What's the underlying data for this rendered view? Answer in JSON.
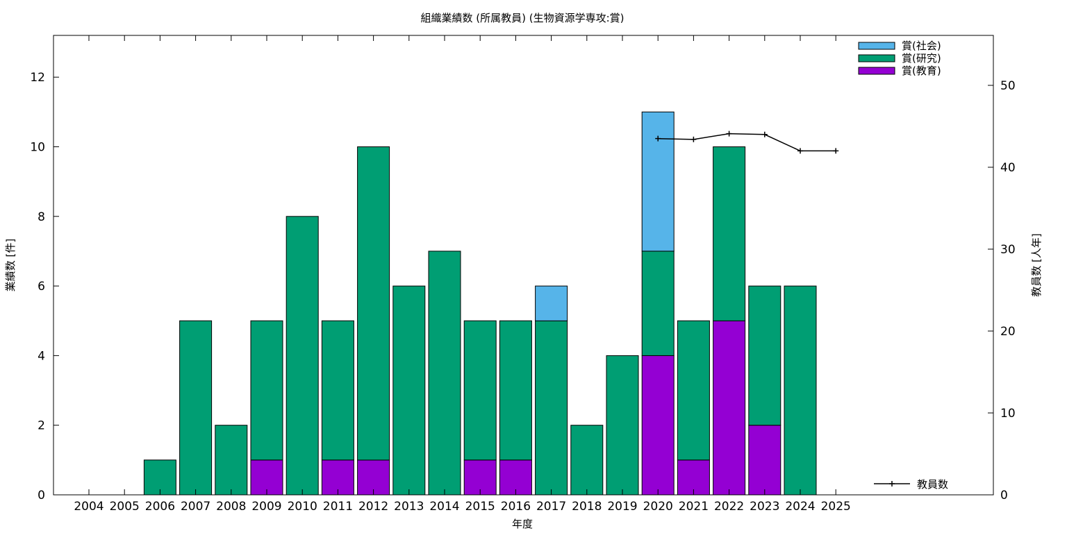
{
  "chart_data": {
    "type": "bar",
    "stacked": true,
    "title": "組織業績数 (所属教員) (生物資源学専攻:賞)",
    "xlabel": "年度",
    "ylabel": "業績数 [件]",
    "y2label": "教員数 [人年]",
    "ylim": [
      0,
      13.2
    ],
    "y2lim": [
      0,
      56.1
    ],
    "yticks": [
      0,
      2,
      4,
      6,
      8,
      10,
      12
    ],
    "y2ticks": [
      0,
      10,
      20,
      30,
      40,
      50
    ],
    "grid": false,
    "legend_position": "top-right",
    "categories": [
      "2004",
      "2005",
      "2006",
      "2007",
      "2008",
      "2009",
      "2010",
      "2011",
      "2012",
      "2013",
      "2014",
      "2015",
      "2016",
      "2017",
      "2018",
      "2019",
      "2020",
      "2021",
      "2022",
      "2023",
      "2024",
      "2025"
    ],
    "series": [
      {
        "name": "賞(教育)",
        "color": "#9400d3",
        "values": [
          0,
          0,
          0,
          0,
          0,
          1,
          0,
          1,
          1,
          0,
          0,
          1,
          1,
          0,
          0,
          0,
          4,
          1,
          5,
          2,
          0,
          0
        ]
      },
      {
        "name": "賞(研究)",
        "color": "#009e73",
        "values": [
          0,
          0,
          1,
          5,
          2,
          4,
          8,
          4,
          9,
          6,
          7,
          4,
          4,
          5,
          2,
          4,
          3,
          4,
          5,
          4,
          6,
          0
        ]
      },
      {
        "name": "賞(社会)",
        "color": "#56b4e9",
        "values": [
          0,
          0,
          0,
          0,
          0,
          0,
          0,
          0,
          0,
          0,
          0,
          0,
          0,
          1,
          0,
          0,
          4,
          0,
          0,
          0,
          0,
          0
        ]
      }
    ],
    "line_series": {
      "name": "教員数",
      "axis": "y2",
      "x": [
        "2020",
        "2021",
        "2022",
        "2023",
        "2024",
        "2025"
      ],
      "values": [
        43.5,
        43.4,
        44.1,
        44.0,
        42.0,
        42.0
      ]
    }
  }
}
